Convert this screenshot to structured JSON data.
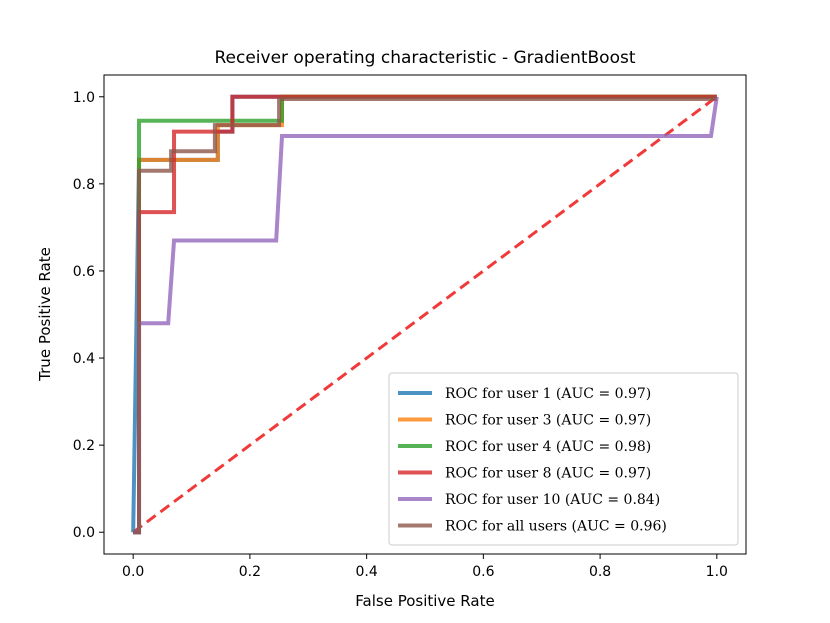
{
  "chart_data": {
    "type": "line",
    "title": "Receiver operating characteristic - GradientBoost",
    "xlabel": "False Positive Rate",
    "ylabel": "True Positive Rate",
    "xlim": [
      -0.05,
      1.05
    ],
    "ylim": [
      -0.05,
      1.05
    ],
    "xticks": [
      0.0,
      0.2,
      0.4,
      0.6,
      0.8,
      1.0
    ],
    "xtick_labels": [
      "0.0",
      "0.2",
      "0.4",
      "0.6",
      "0.8",
      "1.0"
    ],
    "yticks": [
      0.0,
      0.2,
      0.4,
      0.6,
      0.8,
      1.0
    ],
    "ytick_labels": [
      "0.0",
      "0.2",
      "0.4",
      "0.6",
      "0.8",
      "1.0"
    ],
    "grid": false,
    "legend_position": "lower-right",
    "series": [
      {
        "name": "ROC for user 1 (AUC = 0.97)",
        "color": "#1f77b4",
        "x": [
          0.0,
          0.01,
          0.01,
          0.145,
          0.145,
          0.17,
          0.17,
          1.0
        ],
        "y": [
          0.0,
          0.855,
          0.855,
          0.855,
          0.92,
          0.92,
          1.0,
          1.0
        ]
      },
      {
        "name": "ROC for user 3 (AUC = 0.97)",
        "color": "#ff7f0e",
        "x": [
          0.0,
          0.01,
          0.01,
          0.145,
          0.145,
          0.255,
          0.255,
          1.0
        ],
        "y": [
          0.0,
          0.0,
          0.855,
          0.855,
          0.935,
          0.935,
          1.0,
          1.0
        ]
      },
      {
        "name": "ROC for user 4 (AUC = 0.98)",
        "color": "#2ca02c",
        "x": [
          0.0,
          0.01,
          0.01,
          0.24,
          0.24,
          0.255,
          0.255,
          1.0
        ],
        "y": [
          0.0,
          0.0,
          0.945,
          0.945,
          0.945,
          0.945,
          1.0,
          1.0
        ]
      },
      {
        "name": "ROC for user 8 (AUC = 0.97)",
        "color": "#d62728",
        "x": [
          0.0,
          0.01,
          0.01,
          0.06,
          0.06,
          0.07,
          0.07,
          0.17,
          0.17,
          0.175,
          0.175,
          1.0
        ],
        "y": [
          0.0,
          0.0,
          0.735,
          0.735,
          0.735,
          0.735,
          0.92,
          0.92,
          1.0,
          1.0,
          1.0,
          1.0
        ]
      },
      {
        "name": "ROC for user 10 (AUC = 0.84)",
        "color": "#9467bd",
        "x": [
          0.0,
          0.01,
          0.01,
          0.06,
          0.06,
          0.07,
          0.07,
          0.245,
          0.245,
          0.255,
          0.255,
          0.99,
          0.99,
          1.0
        ],
        "y": [
          0.0,
          0.0,
          0.48,
          0.48,
          0.48,
          0.67,
          0.67,
          0.67,
          0.67,
          0.91,
          0.91,
          0.91,
          0.91,
          1.0
        ]
      },
      {
        "name": "ROC for all users (AUC = 0.96)",
        "color": "#8c564b",
        "x": [
          0.0,
          0.01,
          0.01,
          0.065,
          0.065,
          0.14,
          0.14,
          0.25,
          0.25,
          1.0
        ],
        "y": [
          0.0,
          0.0,
          0.83,
          0.83,
          0.875,
          0.875,
          0.935,
          0.935,
          0.995,
          0.995
        ]
      }
    ],
    "reference_line": {
      "name": "chance",
      "color": "#f03a3a",
      "style": "dashed",
      "x": [
        0.0,
        1.0
      ],
      "y": [
        0.0,
        1.0
      ]
    }
  }
}
